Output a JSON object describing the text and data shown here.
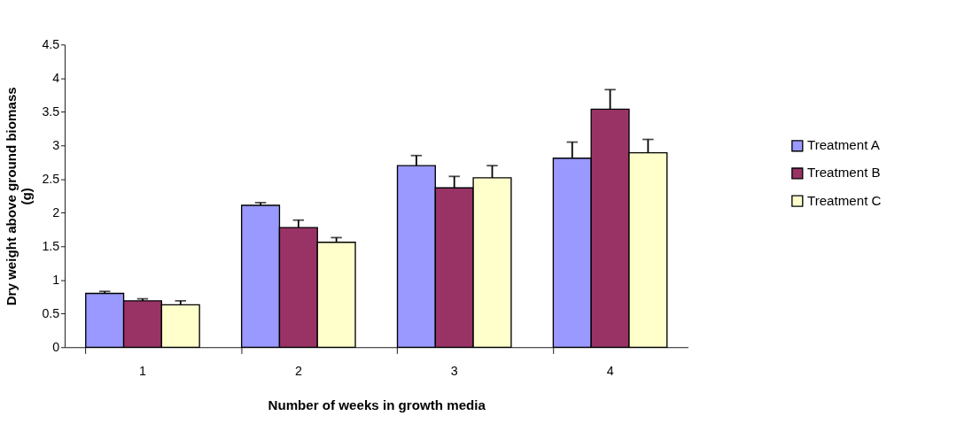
{
  "chart_data": {
    "type": "bar",
    "xlabel": "Number of weeks in growth media",
    "ylabel": "Dry weight above ground biomass (g)",
    "categories": [
      "1",
      "2",
      "3",
      "4"
    ],
    "series": [
      {
        "name": "Treatment A",
        "color": "#9999ff",
        "values": [
          0.8,
          2.11,
          2.7,
          2.81
        ],
        "errors": [
          [
            0.8,
            0.83
          ],
          [
            2.11,
            2.15
          ],
          [
            2.7,
            2.85
          ],
          [
            2.81,
            3.05
          ]
        ]
      },
      {
        "name": "Treatment B",
        "color": "#993366",
        "values": [
          0.69,
          1.78,
          2.37,
          3.54
        ],
        "errors": [
          [
            0.69,
            0.72
          ],
          [
            1.78,
            1.89
          ],
          [
            2.37,
            2.54
          ],
          [
            3.54,
            3.83
          ]
        ]
      },
      {
        "name": "Treatment C",
        "color": "#ffffcc",
        "values": [
          0.63,
          1.56,
          2.52,
          2.89
        ],
        "errors": [
          [
            0.63,
            0.69
          ],
          [
            1.56,
            1.63
          ],
          [
            2.52,
            2.7
          ],
          [
            2.89,
            3.09
          ]
        ]
      }
    ],
    "ylim": [
      0,
      4.5
    ],
    "yticks": [
      0,
      0.5,
      1,
      1.5,
      2,
      2.5,
      3,
      3.5,
      4,
      4.5
    ],
    "grid": false,
    "legend": "right"
  }
}
